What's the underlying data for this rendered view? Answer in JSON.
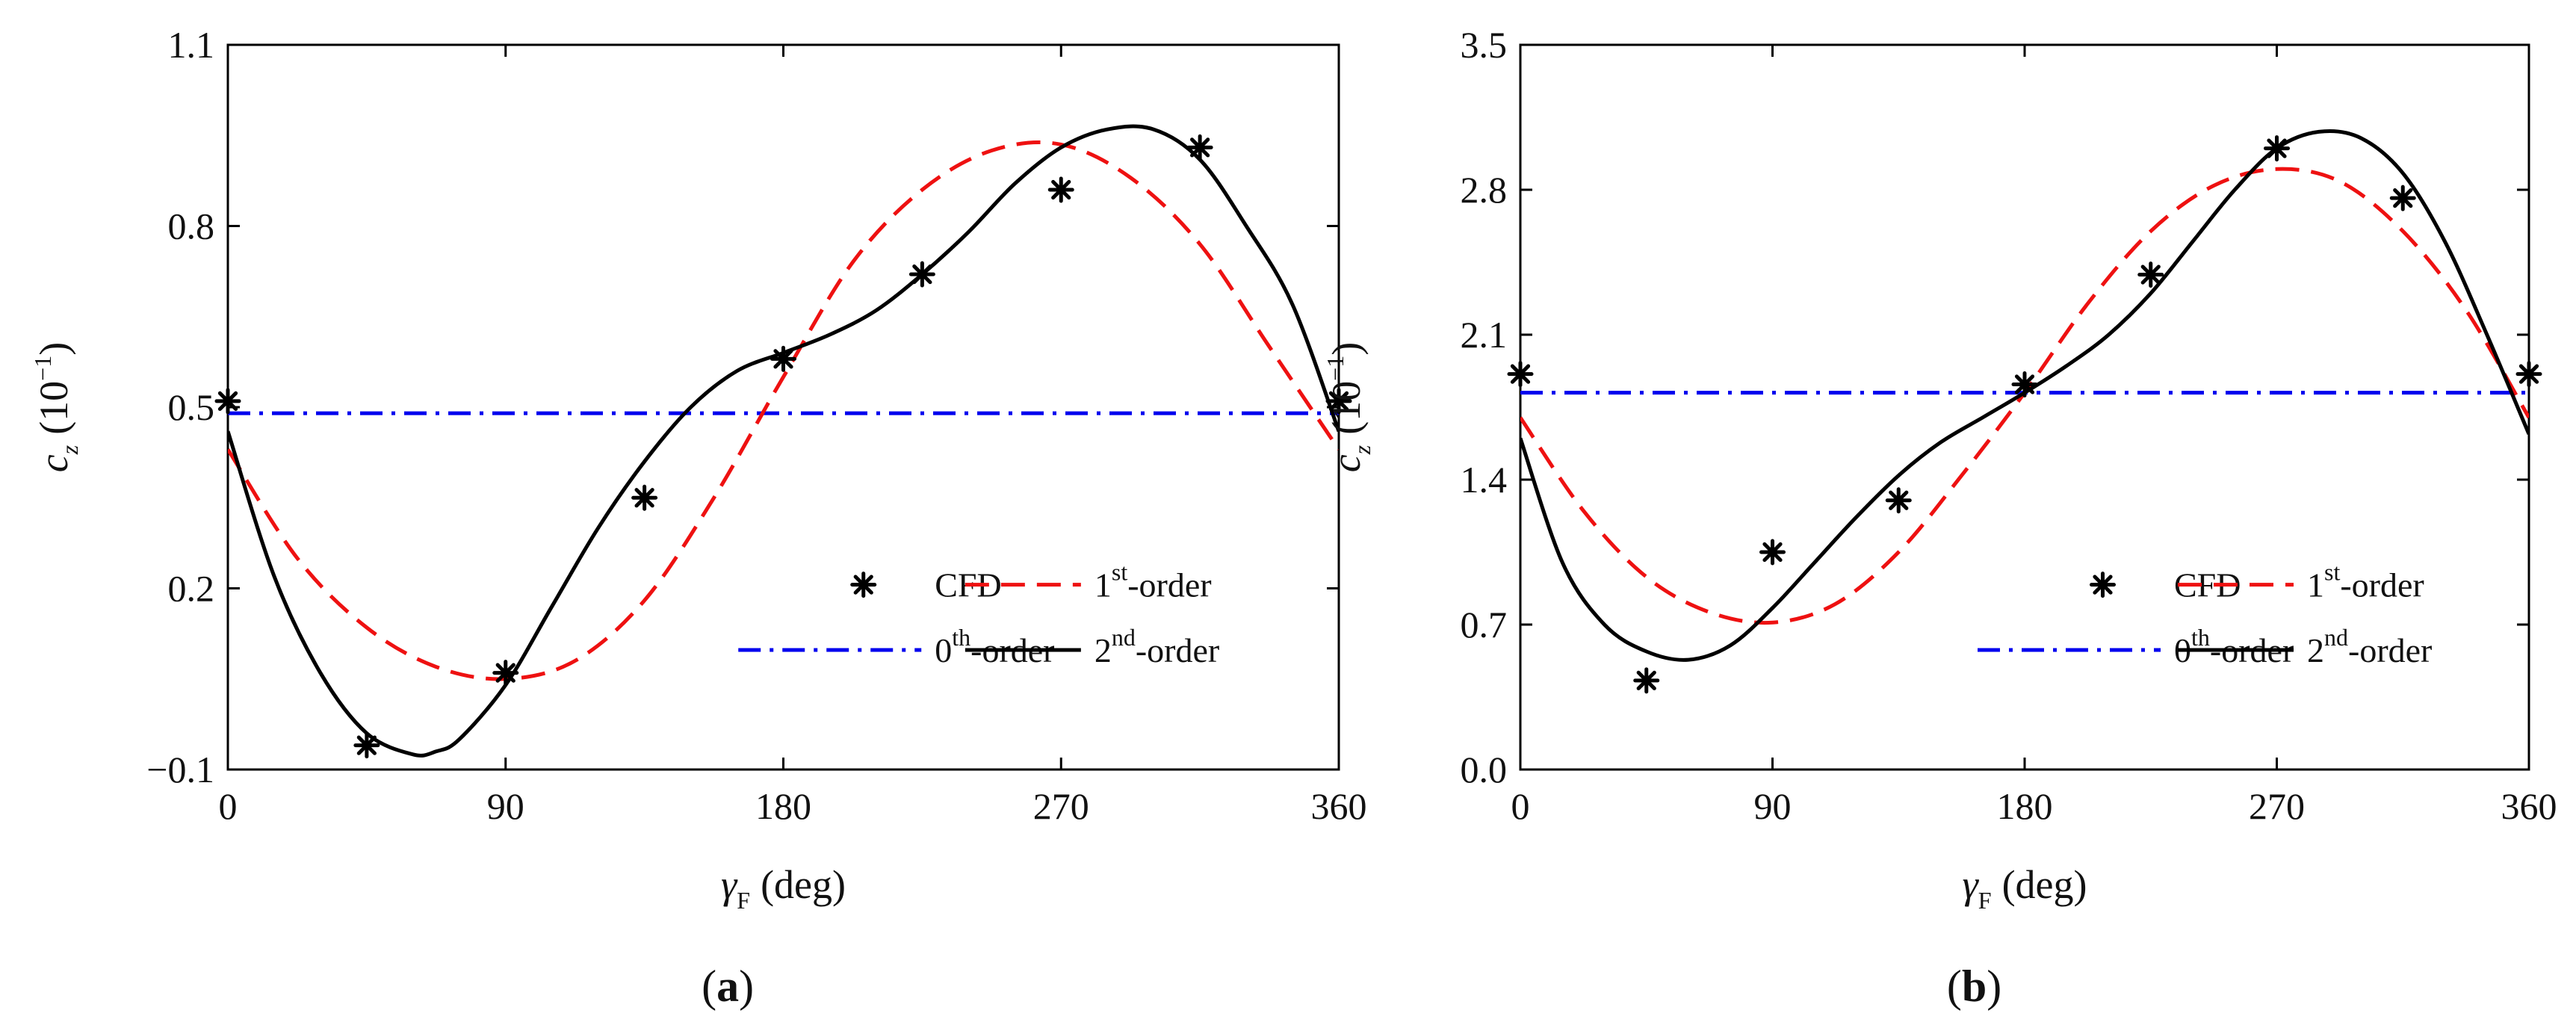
{
  "chart_data": [
    {
      "type": "line",
      "panel": "(a)",
      "panel_letter": "a",
      "ylabel_var": "c",
      "ylabel_sub": "z",
      "ylabel_scale": "(10",
      "ylabel_exp": "−1",
      "ylabel_close": ")",
      "xlabel_var": "γ",
      "xlabel_sub": "F",
      "xlabel_unit": "(deg)",
      "xlim": [
        0,
        360
      ],
      "ylim": [
        -0.1,
        1.1
      ],
      "xticks": [
        0,
        90,
        180,
        270,
        360
      ],
      "xtick_labels": [
        "0",
        "90",
        "180",
        "270",
        "360"
      ],
      "yticks": [
        -0.1,
        0.2,
        0.5,
        0.8,
        1.1
      ],
      "ytick_labels": [
        "−0.1",
        "0.2",
        "0.5",
        "0.8",
        "1.1"
      ],
      "cfd": {
        "x": [
          0,
          45,
          90,
          135,
          180,
          225,
          270,
          315,
          360
        ],
        "y": [
          0.51,
          -0.06,
          0.06,
          0.35,
          0.58,
          0.72,
          0.86,
          0.93,
          0.51
        ]
      },
      "zeroth": {
        "y": 0.49
      },
      "first": {
        "x": [
          0,
          22.5,
          45,
          67.5,
          90,
          112.5,
          135,
          157.5,
          180,
          202.5,
          225,
          247.5,
          270,
          292.5,
          315,
          337.5,
          360
        ],
        "y": [
          0.43,
          0.25,
          0.135,
          0.07,
          0.05,
          0.08,
          0.18,
          0.35,
          0.55,
          0.74,
          0.86,
          0.925,
          0.935,
          0.88,
          0.77,
          0.6,
          0.43
        ]
      },
      "second": {
        "x": [
          0,
          15,
          30,
          45,
          60,
          67.5,
          75,
          90,
          105,
          120,
          135,
          150,
          165,
          180,
          195,
          210,
          225,
          240,
          255,
          270,
          285,
          300,
          315,
          330,
          345,
          360
        ],
        "y": [
          0.46,
          0.22,
          0.06,
          -0.04,
          -0.075,
          -0.07,
          -0.05,
          0.04,
          0.17,
          0.3,
          0.41,
          0.5,
          0.56,
          0.59,
          0.62,
          0.66,
          0.72,
          0.79,
          0.87,
          0.93,
          0.96,
          0.96,
          0.91,
          0.8,
          0.67,
          0.46
        ]
      },
      "legend": {
        "cfd": "CFD",
        "first_base": "1",
        "first_sup": "st",
        "first_rest": "-order",
        "zeroth_base": "0",
        "zeroth_sup": "th",
        "zeroth_rest": "-order",
        "second_base": "2",
        "second_sup": "nd",
        "second_rest": "-order"
      },
      "colors": {
        "cfd": "#000000",
        "zeroth": "#0000ee",
        "first": "#ee1111",
        "second": "#000000"
      }
    },
    {
      "type": "line",
      "panel": "(b)",
      "panel_letter": "b",
      "ylabel_var": "c",
      "ylabel_sub": "z",
      "ylabel_scale": "(10",
      "ylabel_exp": "−1",
      "ylabel_close": ")",
      "xlabel_var": "γ",
      "xlabel_sub": "F",
      "xlabel_unit": "(deg)",
      "xlim": [
        0,
        360
      ],
      "ylim": [
        0.0,
        3.5
      ],
      "xticks": [
        0,
        90,
        180,
        270,
        360
      ],
      "xtick_labels": [
        "0",
        "90",
        "180",
        "270",
        "360"
      ],
      "yticks": [
        0.0,
        0.7,
        1.4,
        2.1,
        2.8,
        3.5
      ],
      "ytick_labels": [
        "0.0",
        "0.7",
        "1.4",
        "2.1",
        "2.8",
        "3.5"
      ],
      "cfd": {
        "x": [
          0,
          45,
          90,
          135,
          180,
          225,
          270,
          315,
          360
        ],
        "y": [
          1.91,
          0.43,
          1.05,
          1.3,
          1.86,
          2.39,
          3.0,
          2.76,
          1.91
        ]
      },
      "zeroth": {
        "y": 1.82
      },
      "first": {
        "x": [
          0,
          22.5,
          45,
          67.5,
          90,
          112.5,
          135,
          157.5,
          180,
          202.5,
          225,
          247.5,
          270,
          292.5,
          315,
          337.5,
          360
        ],
        "y": [
          1.7,
          1.25,
          0.93,
          0.76,
          0.71,
          0.8,
          1.05,
          1.42,
          1.82,
          2.25,
          2.6,
          2.82,
          2.9,
          2.84,
          2.6,
          2.22,
          1.7
        ]
      },
      "second": {
        "x": [
          0,
          15,
          30,
          45,
          60,
          75,
          90,
          105,
          120,
          135,
          150,
          165,
          180,
          195,
          210,
          225,
          240,
          255,
          270,
          285,
          300,
          315,
          330,
          345,
          360
        ],
        "y": [
          1.6,
          1.0,
          0.7,
          0.57,
          0.53,
          0.6,
          0.78,
          1.0,
          1.22,
          1.42,
          1.58,
          1.7,
          1.82,
          1.95,
          2.1,
          2.3,
          2.55,
          2.8,
          3.0,
          3.08,
          3.05,
          2.88,
          2.55,
          2.1,
          1.62
        ]
      },
      "legend": {
        "cfd": "CFD",
        "first_base": "1",
        "first_sup": "st",
        "first_rest": "-order",
        "zeroth_base": "0",
        "zeroth_sup": "th",
        "zeroth_rest": "-order",
        "second_base": "2",
        "second_sup": "nd",
        "second_rest": "-order"
      },
      "colors": {
        "cfd": "#000000",
        "zeroth": "#0000ee",
        "first": "#ee1111",
        "second": "#000000"
      }
    }
  ]
}
